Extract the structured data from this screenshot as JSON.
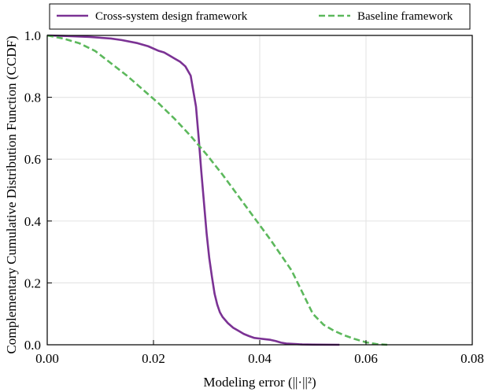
{
  "chart_data": {
    "type": "line",
    "title": "",
    "xlabel": "Modeling error (||·||²)",
    "ylabel": "Complementary Cumulative Distribution Function (CCDF)",
    "xlim": [
      0.0,
      0.08
    ],
    "ylim": [
      0.0,
      1.0
    ],
    "xticks": [
      0.0,
      0.02,
      0.04,
      0.06,
      0.08
    ],
    "xtick_labels": [
      "0.00",
      "0.02",
      "0.04",
      "0.06",
      "0.08"
    ],
    "yticks": [
      0.0,
      0.2,
      0.4,
      0.6,
      0.8,
      1.0
    ],
    "ytick_labels": [
      "0.0",
      "0.2",
      "0.4",
      "0.6",
      "0.8",
      "1.0"
    ],
    "grid": true,
    "legend_position": "top",
    "series": [
      {
        "name": "Cross-system design framework",
        "color": "#7b3294",
        "style": "solid",
        "x": [
          0.0,
          0.004,
          0.008,
          0.012,
          0.014,
          0.017,
          0.019,
          0.021,
          0.022,
          0.023,
          0.024,
          0.025,
          0.026,
          0.027,
          0.028,
          0.0285,
          0.029,
          0.0295,
          0.03,
          0.0305,
          0.031,
          0.0315,
          0.032,
          0.0325,
          0.033,
          0.034,
          0.035,
          0.036,
          0.037,
          0.038,
          0.039,
          0.04,
          0.041,
          0.042,
          0.043,
          0.044,
          0.045,
          0.046,
          0.047,
          0.048,
          0.05,
          0.055
        ],
        "y": [
          1.0,
          0.998,
          0.995,
          0.99,
          0.985,
          0.975,
          0.965,
          0.95,
          0.945,
          0.935,
          0.925,
          0.915,
          0.9,
          0.87,
          0.77,
          0.67,
          0.56,
          0.46,
          0.36,
          0.28,
          0.22,
          0.165,
          0.13,
          0.105,
          0.09,
          0.07,
          0.055,
          0.045,
          0.035,
          0.028,
          0.022,
          0.02,
          0.018,
          0.016,
          0.012,
          0.007,
          0.004,
          0.003,
          0.002,
          0.001,
          0.0005,
          0.0
        ]
      },
      {
        "name": "Baseline framework",
        "color": "#5cb85c",
        "style": "dashed",
        "x": [
          0.0,
          0.003,
          0.006,
          0.009,
          0.012,
          0.015,
          0.018,
          0.021,
          0.024,
          0.027,
          0.03,
          0.033,
          0.036,
          0.039,
          0.042,
          0.044,
          0.046,
          0.048,
          0.05,
          0.052,
          0.054,
          0.056,
          0.058,
          0.06,
          0.062,
          0.064
        ],
        "y": [
          1.0,
          0.99,
          0.975,
          0.95,
          0.91,
          0.87,
          0.825,
          0.78,
          0.73,
          0.675,
          0.615,
          0.55,
          0.48,
          0.41,
          0.34,
          0.29,
          0.24,
          0.17,
          0.1,
          0.065,
          0.045,
          0.03,
          0.018,
          0.008,
          0.002,
          0.0
        ]
      }
    ]
  }
}
